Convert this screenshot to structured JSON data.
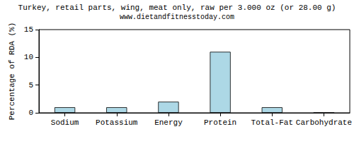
{
  "chart_data": {
    "type": "bar",
    "title": "Turkey, retail parts, wing, meat only, raw per 3.000 oz (or 28.00 g)",
    "subtitle": "www.dietandfitnesstoday.com",
    "y_label": "Percentage of RDA (%)",
    "categories": [
      "Sodium",
      "Potassium",
      "Energy",
      "Protein",
      "Total-Fat",
      "Carbohydrate"
    ],
    "values": [
      1,
      1,
      2,
      11,
      1,
      0
    ],
    "color": "#add8e6",
    "ylim": [
      0,
      15
    ],
    "yticks": [
      0,
      5,
      10,
      15
    ],
    "grid": false
  }
}
